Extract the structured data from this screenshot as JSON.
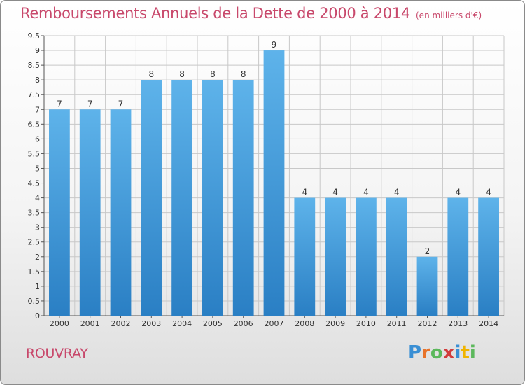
{
  "header": {
    "title": "Remboursements Annuels de la Dette de 2000 à 2014",
    "subtitle": "(en milliers d'€)"
  },
  "footer": {
    "commune": "ROUVRAY",
    "logo_letters": [
      "P",
      "r",
      "o",
      "x",
      "i",
      "t",
      "i"
    ],
    "logo_colors": [
      "#3a8fd4",
      "#e8732a",
      "#5cb85c",
      "#d23c3c",
      "#3a8fd4",
      "#f0b400",
      "#5cb85c"
    ]
  },
  "chart_data": {
    "type": "bar",
    "title": "Remboursements Annuels de la Dette de 2000 à 2014",
    "subtitle": "(en milliers d'€)",
    "xlabel": "",
    "ylabel": "",
    "categories": [
      "2000",
      "2001",
      "2002",
      "2003",
      "2004",
      "2005",
      "2006",
      "2007",
      "2008",
      "2009",
      "2010",
      "2011",
      "2012",
      "2013",
      "2014"
    ],
    "values": [
      7,
      7,
      7,
      8,
      8,
      8,
      8,
      9,
      4,
      4,
      4,
      4,
      2,
      4,
      4
    ],
    "data_labels": [
      "7",
      "7",
      "7",
      "8",
      "8",
      "8",
      "8",
      "9",
      "4",
      "4",
      "4",
      "4",
      "2",
      "4",
      "4"
    ],
    "ylim": [
      0,
      9.5
    ],
    "yticks": [
      0,
      0.5,
      1,
      1.5,
      2,
      2.5,
      3,
      3.5,
      4,
      4.5,
      5,
      5.5,
      6,
      6.5,
      7,
      7.5,
      8,
      8.5,
      9,
      9.5
    ],
    "ytick_labels": [
      "0",
      "0.5",
      "1",
      "1.5",
      "2",
      "2.5",
      "3",
      "3.5",
      "4",
      "4.5",
      "5",
      "5.5",
      "6",
      "6.5",
      "7",
      "7.5",
      "8",
      "8.5",
      "9",
      "9.5"
    ],
    "grid": true,
    "bar_color_top": "#5eb3ea",
    "bar_color_bottom": "#2a7fc4",
    "grid_color": "#c8c8c8"
  }
}
